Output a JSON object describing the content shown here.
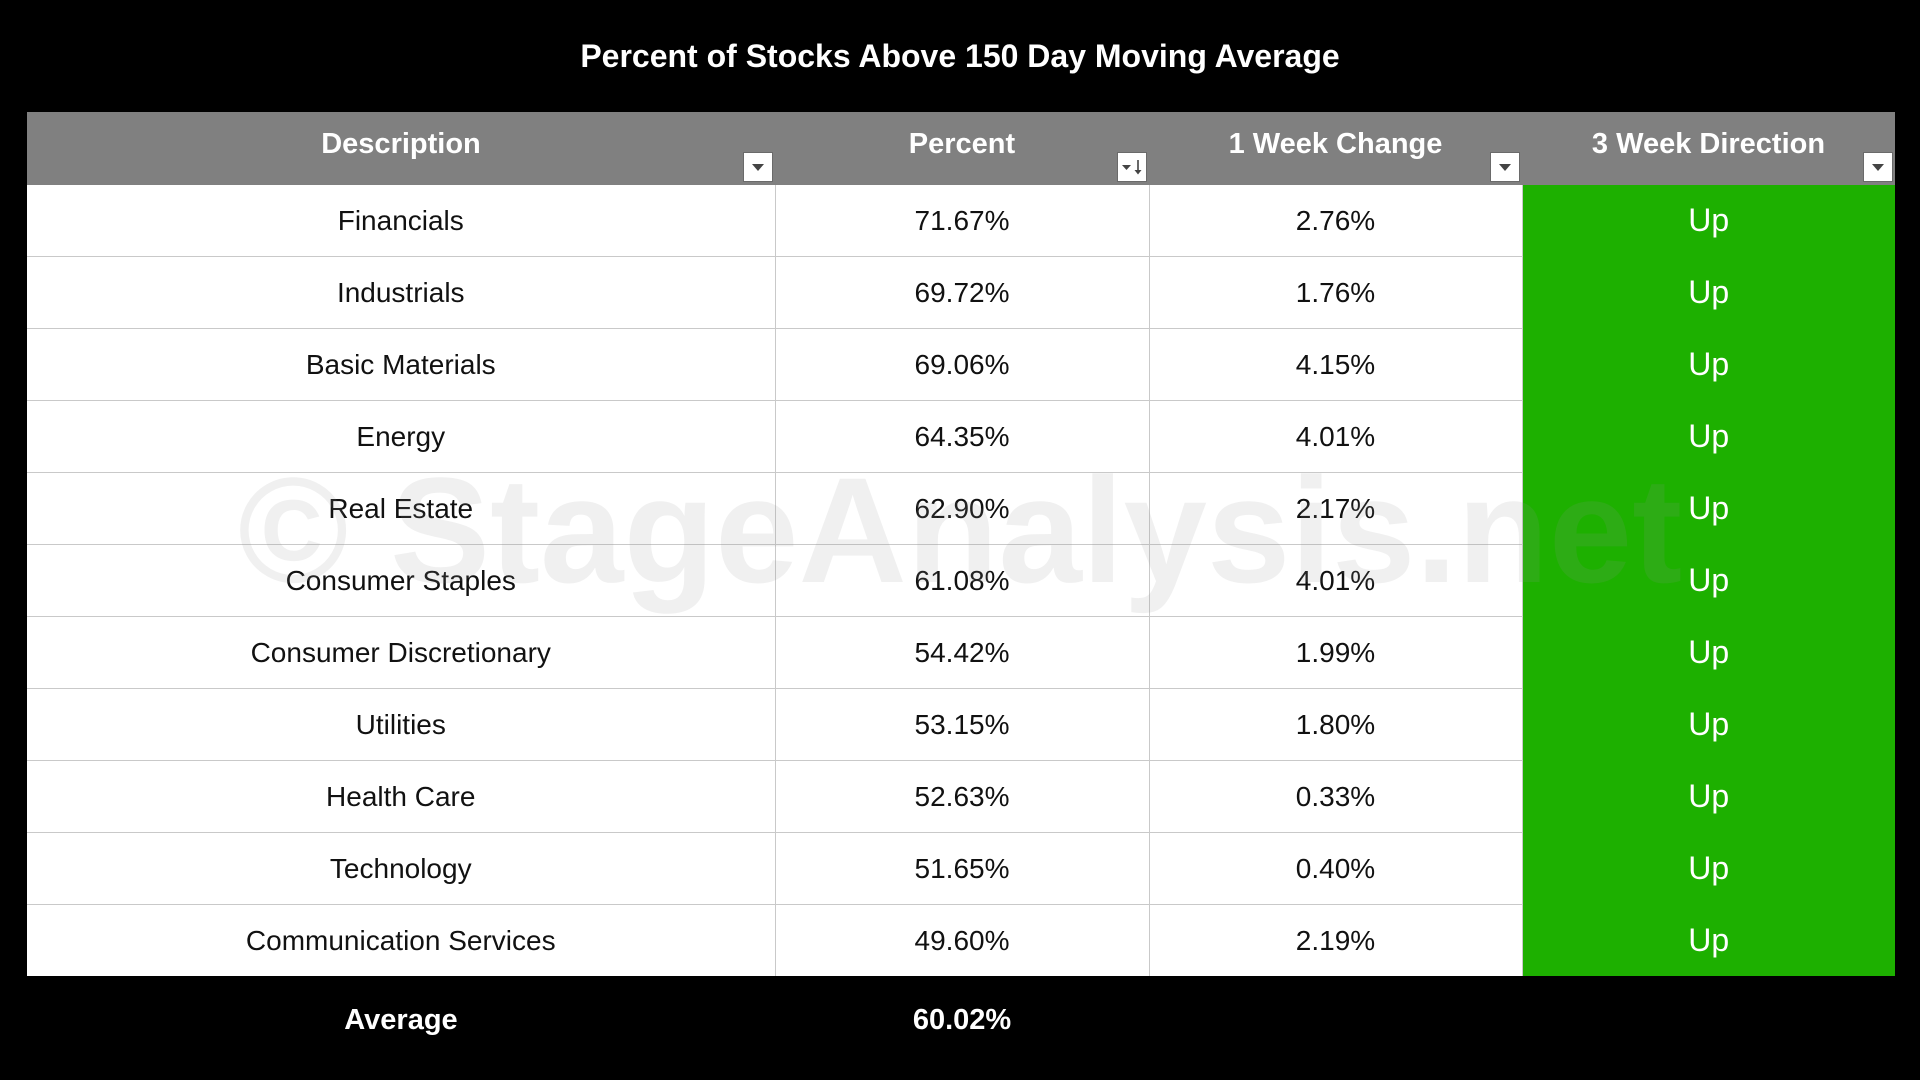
{
  "chart_data": {
    "type": "table",
    "title": "Percent of Stocks Above 150 Day Moving Average",
    "columns": [
      "Description",
      "Percent",
      "1 Week Change",
      "3 Week Direction"
    ],
    "rows": [
      {
        "description": "Financials",
        "percent": "71.67%",
        "week_change": "2.76%",
        "direction": "Up"
      },
      {
        "description": "Industrials",
        "percent": "69.72%",
        "week_change": "1.76%",
        "direction": "Up"
      },
      {
        "description": "Basic Materials",
        "percent": "69.06%",
        "week_change": "4.15%",
        "direction": "Up"
      },
      {
        "description": "Energy",
        "percent": "64.35%",
        "week_change": "4.01%",
        "direction": "Up"
      },
      {
        "description": "Real Estate",
        "percent": "62.90%",
        "week_change": "2.17%",
        "direction": "Up"
      },
      {
        "description": "Consumer Staples",
        "percent": "61.08%",
        "week_change": "4.01%",
        "direction": "Up"
      },
      {
        "description": "Consumer Discretionary",
        "percent": "54.42%",
        "week_change": "1.99%",
        "direction": "Up"
      },
      {
        "description": "Utilities",
        "percent": "53.15%",
        "week_change": "1.80%",
        "direction": "Up"
      },
      {
        "description": "Health Care",
        "percent": "52.63%",
        "week_change": "0.33%",
        "direction": "Up"
      },
      {
        "description": "Technology",
        "percent": "51.65%",
        "week_change": "0.40%",
        "direction": "Up"
      },
      {
        "description": "Communication Services",
        "percent": "49.60%",
        "week_change": "2.19%",
        "direction": "Up"
      }
    ],
    "footer": {
      "label": "Average",
      "percent": "60.02%"
    },
    "sorted_column": "Percent",
    "sort_order": "descending",
    "colors": {
      "background": "#000000",
      "header_background": "#808080",
      "direction_up": "#1db000"
    }
  },
  "watermark": "© StageAnalysis.net"
}
